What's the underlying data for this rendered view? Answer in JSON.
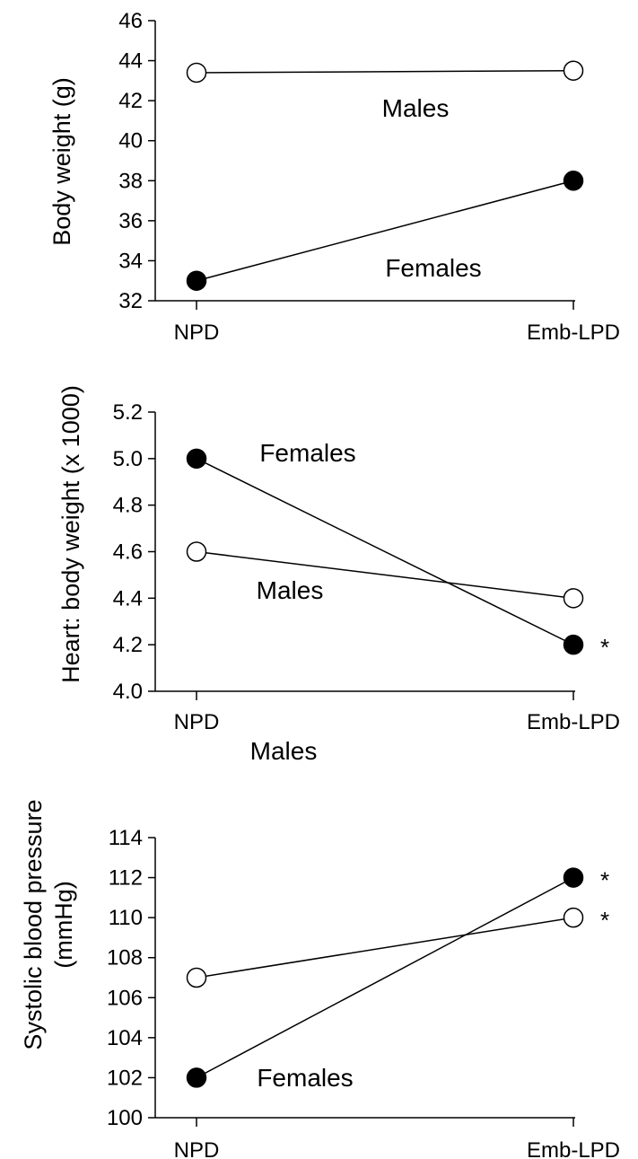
{
  "chart_data": [
    {
      "type": "line",
      "ylabel": [
        "Body weight (g)"
      ],
      "categories": [
        "NPD",
        "Emb-LPD"
      ],
      "ylim": [
        32,
        46
      ],
      "yticks": [
        32,
        34,
        36,
        38,
        40,
        42,
        44,
        46
      ],
      "ytick_labels": [
        "32",
        "34",
        "36",
        "38",
        "40",
        "42",
        "44",
        "46"
      ],
      "series": [
        {
          "name": "Males",
          "marker": "open-circle",
          "values": [
            43.4,
            43.5
          ],
          "significant": [
            false,
            false
          ]
        },
        {
          "name": "Females",
          "marker": "filled-circle",
          "values": [
            33.0,
            38.0
          ],
          "significant": [
            false,
            false
          ]
        }
      ]
    },
    {
      "type": "line",
      "ylabel": [
        "Heart: body weight (x 1000)"
      ],
      "categories": [
        "NPD",
        "Emb-LPD"
      ],
      "ylim": [
        4.0,
        5.2
      ],
      "yticks": [
        4.0,
        4.2,
        4.4,
        4.6,
        4.8,
        5.0,
        5.2
      ],
      "ytick_labels": [
        "4.0",
        "4.2",
        "4.4",
        "4.6",
        "4.8",
        "5.0",
        "5.2"
      ],
      "series": [
        {
          "name": "Females",
          "marker": "filled-circle",
          "values": [
            5.0,
            4.2
          ],
          "significant": [
            false,
            true
          ]
        },
        {
          "name": "Males",
          "marker": "open-circle",
          "values": [
            4.6,
            4.4
          ],
          "significant": [
            false,
            false
          ]
        }
      ]
    },
    {
      "type": "line",
      "ylabel": [
        "Systolic blood pressure",
        "(mmHg)"
      ],
      "categories": [
        "NPD",
        "Emb-LPD"
      ],
      "ylim": [
        100,
        114
      ],
      "yticks": [
        100,
        102,
        104,
        106,
        108,
        110,
        112,
        114
      ],
      "ytick_labels": [
        "100",
        "102",
        "104",
        "106",
        "108",
        "110",
        "112",
        "114"
      ],
      "series": [
        {
          "name": "Males",
          "marker": "open-circle",
          "values": [
            107,
            110
          ],
          "significant": [
            false,
            true
          ]
        },
        {
          "name": "Females",
          "marker": "filled-circle",
          "values": [
            102,
            112
          ],
          "significant": [
            false,
            true
          ]
        }
      ]
    }
  ],
  "significance_marker": "*",
  "colors": {
    "line": "#000000",
    "open_fill": "#ffffff",
    "filled": "#000000"
  }
}
